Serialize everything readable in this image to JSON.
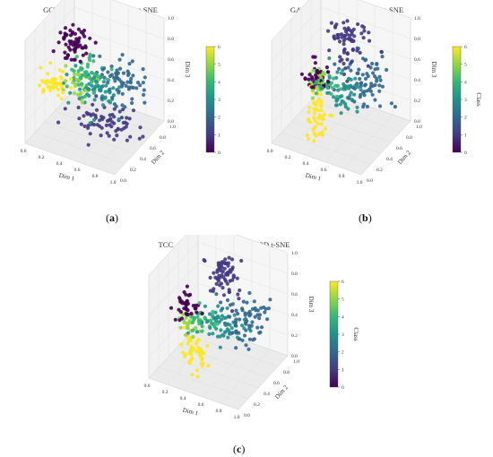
{
  "figure": {
    "panels": [
      {
        "id": "a",
        "label_letter": "a",
        "chart_type": "scatter",
        "title": "GCN Model Embeddings - 3D t-SNE",
        "xlabel": "Dim 1",
        "ylabel": "Dim 2",
        "zlabel": "Dim 3",
        "colorbar_label": "",
        "x_ticks": [
          "0.0",
          "0.2",
          "0.4",
          "0.6",
          "0.8",
          "1.0"
        ],
        "y_ticks": [
          "0.0",
          "0.2",
          "0.4",
          "0.6",
          "0.8",
          "1.0"
        ],
        "z_ticks": [
          "0.0",
          "0.2",
          "0.4",
          "0.6",
          "0.8",
          "1.0"
        ],
        "colorbar_ticks": [
          "0",
          "1",
          "2",
          "3",
          "4",
          "5",
          "6"
        ]
      },
      {
        "id": "b",
        "label_letter": "b",
        "chart_type": "scatter",
        "title": "GAT Model Embeddings - 3D t-SNE",
        "xlabel": "Dim 1",
        "ylabel": "Dim 2",
        "zlabel": "Dim 3",
        "colorbar_label": "Class",
        "x_ticks": [
          "0.0",
          "0.2",
          "0.4",
          "0.6",
          "0.8",
          "1.0"
        ],
        "y_ticks": [
          "0.0",
          "0.2",
          "0.4",
          "0.6",
          "0.8",
          "1.0"
        ],
        "z_ticks": [
          "0.0",
          "0.2",
          "0.4",
          "0.6",
          "0.8",
          "1.0"
        ],
        "colorbar_ticks": [
          "0",
          "1",
          "2",
          "3",
          "4",
          "5",
          "6"
        ]
      },
      {
        "id": "c",
        "label_letter": "c",
        "chart_type": "scatter",
        "title": "TCC_GAT Model Embeddings - 3D t-SNE",
        "xlabel": "Dim 1",
        "ylabel": "Dim 2",
        "zlabel": "Dim 3",
        "colorbar_label": "Class",
        "x_ticks": [
          "0.0",
          "0.2",
          "0.4",
          "0.6",
          "0.8",
          "1.0"
        ],
        "y_ticks": [
          "0.0",
          "0.2",
          "0.4",
          "0.6",
          "0.8",
          "1.0"
        ],
        "z_ticks": [
          "0.0",
          "0.2",
          "0.4",
          "0.6",
          "0.8",
          "1.0"
        ],
        "colorbar_ticks": [
          "0",
          "1",
          "2",
          "3",
          "4",
          "5",
          "6"
        ]
      }
    ]
  },
  "chart_data": [
    {
      "type": "scatter",
      "title": "GCN Model Embeddings - 3D t-SNE",
      "xlabel": "Dim 1",
      "ylabel": "Dim 2",
      "zlabel": "Dim 3",
      "xlim": [
        0,
        1
      ],
      "ylim": [
        0,
        1
      ],
      "zlim": [
        0,
        1
      ],
      "color_scale": "viridis",
      "color_range": [
        0,
        6
      ],
      "clusters": [
        {
          "class": 0,
          "x": 0.33,
          "y": 0.35,
          "z": 0.9,
          "spread": [
            0.07,
            0.07,
            0.1
          ],
          "count": 60
        },
        {
          "class": 1,
          "x": 0.62,
          "y": 0.45,
          "z": 0.18,
          "spread": [
            0.18,
            0.1,
            0.06
          ],
          "count": 70
        },
        {
          "class": 2,
          "x": 0.78,
          "y": 0.55,
          "z": 0.55,
          "spread": [
            0.12,
            0.12,
            0.1
          ],
          "count": 70
        },
        {
          "class": 3,
          "x": 0.55,
          "y": 0.45,
          "z": 0.45,
          "spread": [
            0.14,
            0.1,
            0.1
          ],
          "count": 60
        },
        {
          "class": 4,
          "x": 0.48,
          "y": 0.4,
          "z": 0.62,
          "spread": [
            0.1,
            0.08,
            0.08
          ],
          "count": 45
        },
        {
          "class": 5,
          "x": 0.4,
          "y": 0.4,
          "z": 0.52,
          "spread": [
            0.08,
            0.08,
            0.08
          ],
          "count": 30
        },
        {
          "class": 6,
          "x": 0.15,
          "y": 0.3,
          "z": 0.48,
          "spread": [
            0.08,
            0.06,
            0.05
          ],
          "count": 45
        }
      ]
    },
    {
      "type": "scatter",
      "title": "GAT Model Embeddings - 3D t-SNE",
      "xlabel": "Dim 1",
      "ylabel": "Dim 2",
      "zlabel": "Dim 3",
      "colorbar_label": "Class",
      "xlim": [
        0,
        1
      ],
      "ylim": [
        0,
        1
      ],
      "zlim": [
        0,
        1
      ],
      "color_scale": "viridis",
      "color_range": [
        0,
        6
      ],
      "clusters": [
        {
          "class": 0,
          "x": 0.3,
          "y": 0.35,
          "z": 0.55,
          "spread": [
            0.06,
            0.06,
            0.06
          ],
          "count": 40
        },
        {
          "class": 1,
          "x": 0.55,
          "y": 0.55,
          "z": 0.88,
          "spread": [
            0.1,
            0.08,
            0.1
          ],
          "count": 70
        },
        {
          "class": 2,
          "x": 0.75,
          "y": 0.55,
          "z": 0.52,
          "spread": [
            0.12,
            0.12,
            0.1
          ],
          "count": 70
        },
        {
          "class": 3,
          "x": 0.55,
          "y": 0.45,
          "z": 0.45,
          "spread": [
            0.1,
            0.1,
            0.08
          ],
          "count": 55
        },
        {
          "class": 4,
          "x": 0.4,
          "y": 0.4,
          "z": 0.48,
          "spread": [
            0.06,
            0.06,
            0.06
          ],
          "count": 25
        },
        {
          "class": 5,
          "x": 0.32,
          "y": 0.38,
          "z": 0.5,
          "spread": [
            0.05,
            0.05,
            0.05
          ],
          "count": 25
        },
        {
          "class": 6,
          "x": 0.33,
          "y": 0.35,
          "z": 0.2,
          "spread": [
            0.05,
            0.05,
            0.14
          ],
          "count": 50
        }
      ]
    },
    {
      "type": "scatter",
      "title": "TCC_GAT Model Embeddings - 3D t-SNE",
      "xlabel": "Dim 1",
      "ylabel": "Dim 2",
      "zlabel": "Dim 3",
      "colorbar_label": "Class",
      "xlim": [
        0,
        1
      ],
      "ylim": [
        0,
        1
      ],
      "zlim": [
        0,
        1
      ],
      "color_scale": "viridis",
      "color_range": [
        0,
        6
      ],
      "clusters": [
        {
          "class": 0,
          "x": 0.25,
          "y": 0.3,
          "z": 0.62,
          "spread": [
            0.06,
            0.06,
            0.06
          ],
          "count": 40
        },
        {
          "class": 1,
          "x": 0.55,
          "y": 0.55,
          "z": 0.88,
          "spread": [
            0.08,
            0.08,
            0.1
          ],
          "count": 70
        },
        {
          "class": 2,
          "x": 0.75,
          "y": 0.55,
          "z": 0.5,
          "spread": [
            0.12,
            0.12,
            0.1
          ],
          "count": 75
        },
        {
          "class": 3,
          "x": 0.55,
          "y": 0.45,
          "z": 0.45,
          "spread": [
            0.1,
            0.1,
            0.08
          ],
          "count": 55
        },
        {
          "class": 4,
          "x": 0.4,
          "y": 0.38,
          "z": 0.5,
          "spread": [
            0.06,
            0.06,
            0.06
          ],
          "count": 30
        },
        {
          "class": 5,
          "x": 0.25,
          "y": 0.35,
          "z": 0.45,
          "spread": [
            0.05,
            0.05,
            0.05
          ],
          "count": 25
        },
        {
          "class": 6,
          "x": 0.35,
          "y": 0.3,
          "z": 0.18,
          "spread": [
            0.06,
            0.05,
            0.1
          ],
          "count": 50
        }
      ]
    }
  ]
}
